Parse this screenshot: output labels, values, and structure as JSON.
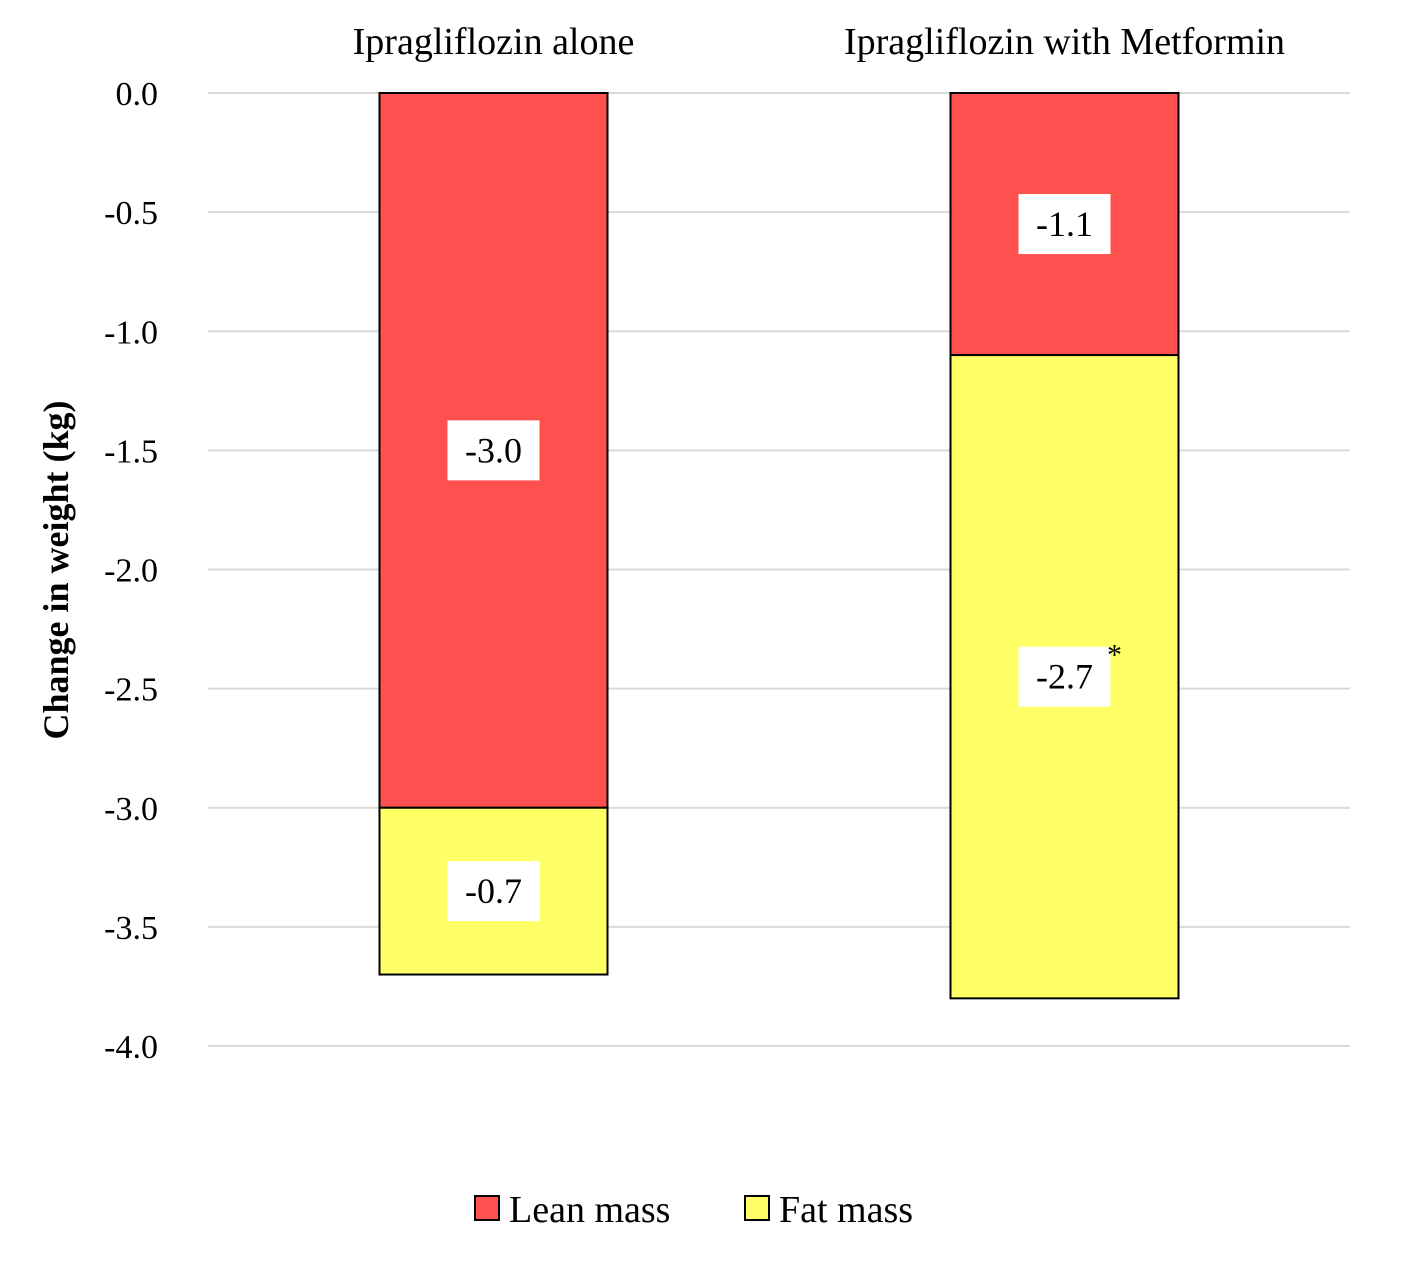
{
  "chart_data": {
    "type": "bar",
    "stacked": true,
    "categories": [
      "Ipragliflozin alone",
      "Ipragliflozin with Metformin"
    ],
    "series": [
      {
        "name": "Lean mass",
        "values": [
          -3.0,
          -1.1
        ],
        "labels": [
          "-3.0",
          "-1.1"
        ],
        "color": "#ff5050"
      },
      {
        "name": "Fat mass",
        "values": [
          -0.7,
          -2.7
        ],
        "labels": [
          "-0.7",
          "-2.7"
        ],
        "color": "#ffff66"
      }
    ],
    "annotations": [
      {
        "series": 1,
        "category": 1,
        "text": "*"
      }
    ],
    "category_axis_position": "top",
    "ylabel": "Change in weight (kg)",
    "ylim": [
      -4.0,
      0.0
    ],
    "yticks": [
      "0.0",
      "-0.5",
      "-1.0",
      "-1.5",
      "-2.0",
      "-2.5",
      "-3.0",
      "-3.5",
      "-4.0"
    ],
    "grid": true,
    "legend": "bottom"
  }
}
